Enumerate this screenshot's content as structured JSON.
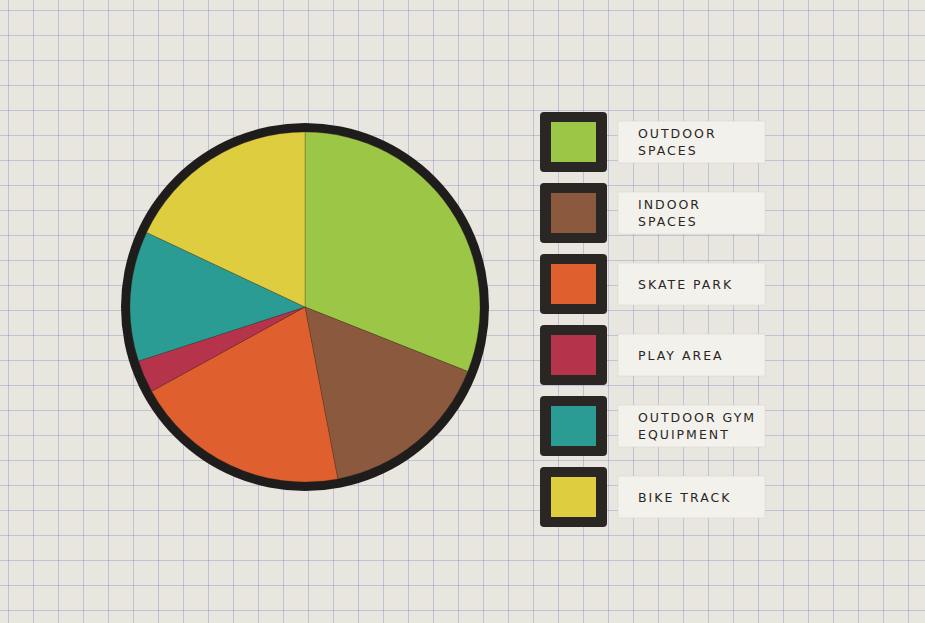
{
  "chart_data": {
    "type": "pie",
    "categories": [
      "OUTDOOR\nSPACES",
      "INDOOR\nSPACES",
      "SKATE PARK",
      "PLAY AREA",
      "OUTDOOR GYM\nEQUIPMENT",
      "BIKE TRACK"
    ],
    "values": [
      31,
      16,
      20,
      3,
      12,
      18
    ],
    "colors": [
      "#9cc746",
      "#8b5a3e",
      "#df5f2f",
      "#b5344c",
      "#2b9c93",
      "#dfcd40"
    ],
    "legend": "right"
  }
}
